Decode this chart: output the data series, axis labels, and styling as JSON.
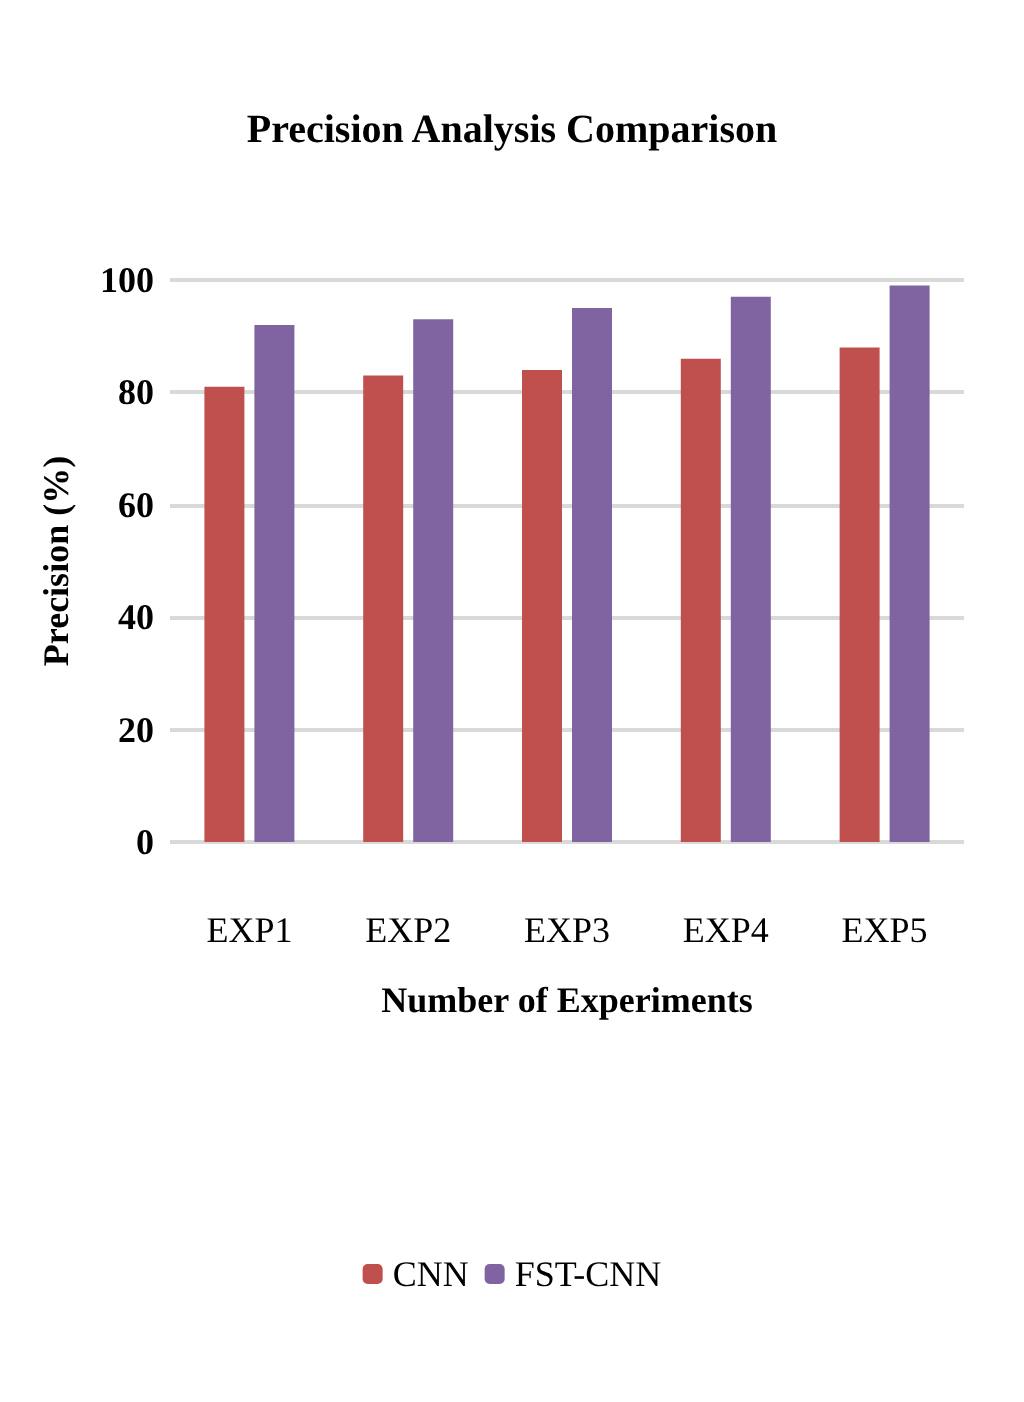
{
  "chart_data": {
    "type": "bar",
    "title": "Precision Analysis Comparison",
    "xlabel": "Number of Experiments",
    "ylabel": "Precision (%)",
    "categories": [
      "EXP1",
      "EXP2",
      "EXP3",
      "EXP4",
      "EXP5"
    ],
    "series": [
      {
        "name": "CNN",
        "color": "#c0504d",
        "values": [
          81,
          83,
          84,
          86,
          88
        ]
      },
      {
        "name": "FST-CNN",
        "color": "#8064a2",
        "values": [
          92,
          93,
          95,
          97,
          99
        ]
      }
    ],
    "ylim": [
      0,
      100
    ],
    "yticks": [
      0,
      20,
      40,
      60,
      80,
      100
    ],
    "grid": "y",
    "legend": "bottom"
  }
}
